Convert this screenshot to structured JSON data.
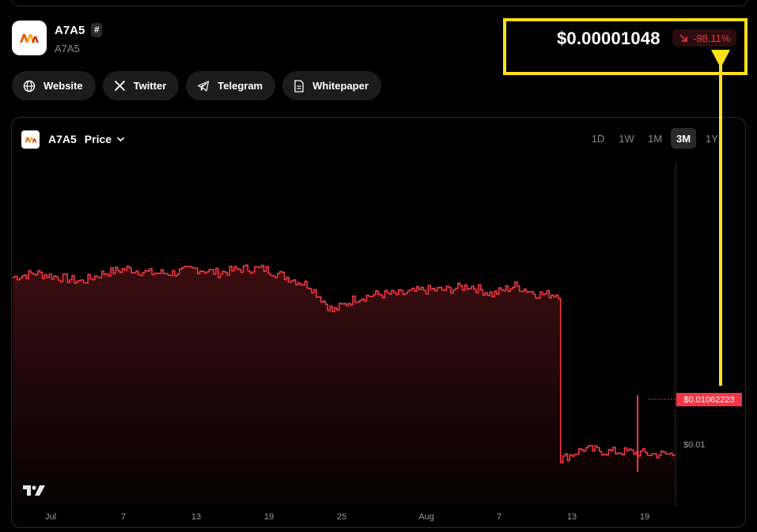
{
  "token": {
    "name": "A7A5",
    "hash_badge": "#",
    "symbol": "A7A5",
    "logo_text": "A7A5"
  },
  "price": {
    "value": "$0.00001048",
    "change": "-98.11%",
    "change_icon": "arrow-down-right-icon"
  },
  "links": [
    {
      "label": "Website",
      "icon": "globe-icon"
    },
    {
      "label": "Twitter",
      "icon": "x-logo-icon"
    },
    {
      "label": "Telegram",
      "icon": "telegram-icon"
    },
    {
      "label": "Whitepaper",
      "icon": "document-icon"
    }
  ],
  "chart_header": {
    "title": "A7A5",
    "metric": "Price",
    "dropdown_icon": "chevron-down-icon"
  },
  "timeframes": [
    "1D",
    "1W",
    "1M",
    "3M",
    "1Y"
  ],
  "active_timeframe": "3M",
  "colors": {
    "accent_red": "#f23645",
    "annotation_yellow": "#ffe01b",
    "background": "#000000"
  },
  "chart_data": {
    "type": "area",
    "current_price_label": "$0.01062223",
    "y_tick_labels": [
      "$0.01"
    ],
    "x_tick_labels": [
      "Jul",
      "7",
      "13",
      "19",
      "25",
      "Aug",
      "7",
      "13",
      "19"
    ],
    "grid": false,
    "series": [
      {
        "x": [
          "Jul 1",
          "Jul 3",
          "Jul 5",
          "Jul 7",
          "Jul 9",
          "Jul 11",
          "Jul 13",
          "Jul 15",
          "Jul 17",
          "Jul 19",
          "Jul 21",
          "Jul 23",
          "Jul 25",
          "Jul 27",
          "Jul 29",
          "Jul 31",
          "Aug 1",
          "Aug 3",
          "Aug 5",
          "Aug 7",
          "Aug 9",
          "Aug 11",
          "Aug 13",
          "Aug 14",
          "Aug 15",
          "Aug 16",
          "Aug 17",
          "Aug 18",
          "Aug 19",
          "Aug 21"
        ],
        "values": [
          0.0148,
          0.0149,
          0.0148,
          0.0147,
          0.0149,
          0.015,
          0.0149,
          0.0149,
          0.015,
          0.0149,
          0.015,
          0.015,
          0.0148,
          0.0146,
          0.014,
          0.0143,
          0.0144,
          0.0144,
          0.0145,
          0.0145,
          0.0146,
          0.0144,
          0.0146,
          0.0144,
          0.0105,
          0.01075,
          0.01068,
          0.01068,
          0.01062,
          0.01062
        ]
      }
    ],
    "ylim": [
      0.0094,
      0.0175
    ]
  }
}
